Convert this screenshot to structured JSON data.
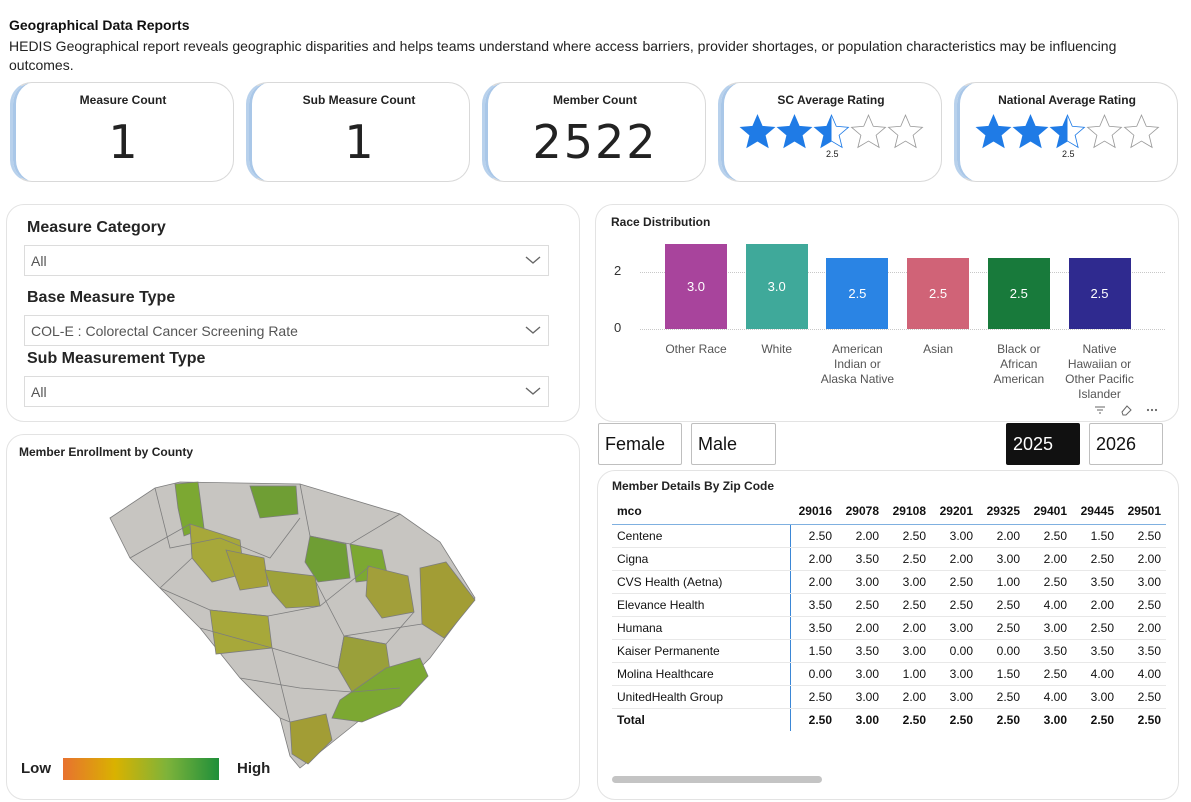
{
  "header": {
    "title": "Geographical Data Reports",
    "description": "HEDIS Geographical report reveals geographic disparities and helps teams understand where access barriers, provider shortages, or population characteristics may be influencing outcomes."
  },
  "kpis": {
    "measure_count": {
      "label": "Measure Count",
      "value": "1"
    },
    "sub_measure_count": {
      "label": "Sub Measure Count",
      "value": "1"
    },
    "member_count": {
      "label": "Member Count",
      "value": "2522"
    },
    "sc_rating": {
      "label": "SC Average Rating",
      "value": "2.5",
      "stars_filled": 2.5,
      "stars_total": 5
    },
    "national_rating": {
      "label": "National Average Rating",
      "value": "2.5",
      "stars_filled": 2.5,
      "stars_total": 5
    }
  },
  "colors": {
    "star_fill": "#1f7be6",
    "star_outline": "#9a9a9a",
    "active_year_bg": "#111111"
  },
  "filters": {
    "measure_category": {
      "label": "Measure Category",
      "value": "All"
    },
    "base_measure_type": {
      "label": "Base Measure Type",
      "value": "COL-E : Colorectal Cancer Screening Rate"
    },
    "sub_measurement_type": {
      "label": "Sub Measurement Type",
      "value": "All"
    }
  },
  "chart_data": {
    "type": "bar",
    "title": "Race Distribution",
    "categories": [
      "Other Race",
      "White",
      "American Indian or Alaska Native",
      "Asian",
      "Black or African American",
      "Native Hawaiian or Other Pacific Islander"
    ],
    "category_lines": [
      [
        "Other Race"
      ],
      [
        "White"
      ],
      [
        "American",
        "Indian or",
        "Alaska Native"
      ],
      [
        "Asian"
      ],
      [
        "Black or",
        "African",
        "American"
      ],
      [
        "Native",
        "Hawaiian or",
        "Other Pacific",
        "Islander"
      ]
    ],
    "values": [
      3.0,
      3.0,
      2.5,
      2.5,
      2.5,
      2.5
    ],
    "value_labels": [
      "3.0",
      "3.0",
      "2.5",
      "2.5",
      "2.5",
      "2.5"
    ],
    "colors": [
      "#a8449c",
      "#3fa99a",
      "#2a84e4",
      "#d06377",
      "#187a3b",
      "#2f2a8f"
    ],
    "y_ticks": [
      "0",
      "2"
    ],
    "ylim": [
      0,
      3.0
    ],
    "grid": true
  },
  "gender_toggle": {
    "female": "Female",
    "male": "Male"
  },
  "year_toggle": {
    "y2025": "2025",
    "y2026": "2026",
    "selected": "2025"
  },
  "map": {
    "title": "Member Enrollment by County",
    "legend_low": "Low",
    "legend_high": "High"
  },
  "table": {
    "title": "Member Details By Zip Code",
    "columns": [
      "mco",
      "29016",
      "29078",
      "29108",
      "29201",
      "29325",
      "29401",
      "29445",
      "29501"
    ],
    "rows": [
      {
        "name": "Centene",
        "values": [
          "2.50",
          "2.00",
          "2.50",
          "3.00",
          "2.00",
          "2.50",
          "1.50",
          "2.50"
        ]
      },
      {
        "name": "Cigna",
        "values": [
          "2.00",
          "3.50",
          "2.50",
          "2.00",
          "3.00",
          "2.00",
          "2.50",
          "2.00"
        ]
      },
      {
        "name": "CVS Health (Aetna)",
        "values": [
          "2.00",
          "3.00",
          "3.00",
          "2.50",
          "1.00",
          "2.50",
          "3.50",
          "3.00"
        ]
      },
      {
        "name": "Elevance Health",
        "values": [
          "3.50",
          "2.50",
          "2.50",
          "2.50",
          "2.50",
          "4.00",
          "2.00",
          "2.50"
        ]
      },
      {
        "name": "Humana",
        "values": [
          "3.50",
          "2.00",
          "2.00",
          "3.00",
          "2.50",
          "3.00",
          "2.50",
          "2.00"
        ]
      },
      {
        "name": "Kaiser Permanente",
        "values": [
          "1.50",
          "3.50",
          "3.00",
          "0.00",
          "0.00",
          "3.50",
          "3.50",
          "3.50"
        ]
      },
      {
        "name": "Molina Healthcare",
        "values": [
          "0.00",
          "3.00",
          "1.00",
          "3.00",
          "1.50",
          "2.50",
          "4.00",
          "4.00"
        ]
      },
      {
        "name": "UnitedHealth Group",
        "values": [
          "2.50",
          "3.00",
          "2.00",
          "3.00",
          "2.50",
          "4.00",
          "3.00",
          "2.50"
        ]
      }
    ],
    "total": {
      "name": "Total",
      "values": [
        "2.50",
        "3.00",
        "2.50",
        "2.50",
        "2.50",
        "3.00",
        "2.50",
        "2.50"
      ]
    }
  }
}
